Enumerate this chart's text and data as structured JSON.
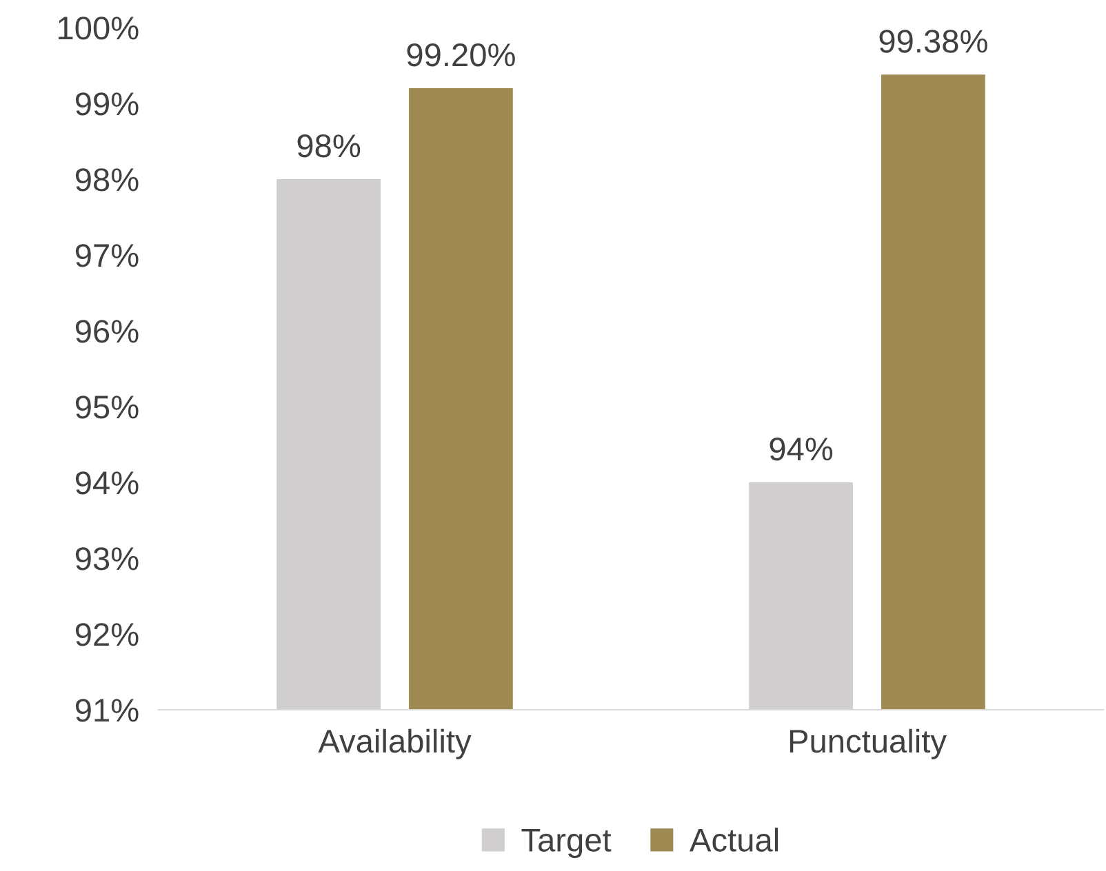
{
  "chart_data": {
    "type": "bar",
    "categories": [
      "Availability",
      "Punctuality"
    ],
    "series": [
      {
        "name": "Target",
        "color": "#d0cece",
        "values": [
          98,
          94
        ],
        "value_labels": [
          "98%",
          "94%"
        ]
      },
      {
        "name": "Actual",
        "color": "#9e8a52",
        "values": [
          99.2,
          99.38
        ],
        "value_labels": [
          "99.20%",
          "99.38%"
        ]
      }
    ],
    "ylim": [
      91,
      100
    ],
    "yticks": [
      {
        "value": 91,
        "label": "91%"
      },
      {
        "value": 92,
        "label": "92%"
      },
      {
        "value": 93,
        "label": "93%"
      },
      {
        "value": 94,
        "label": "94%"
      },
      {
        "value": 95,
        "label": "95%"
      },
      {
        "value": 96,
        "label": "96%"
      },
      {
        "value": 97,
        "label": "97%"
      },
      {
        "value": 98,
        "label": "98%"
      },
      {
        "value": 99,
        "label": "99%"
      },
      {
        "value": 100,
        "label": "100%"
      }
    ],
    "grid": false,
    "legend": "bottom"
  }
}
